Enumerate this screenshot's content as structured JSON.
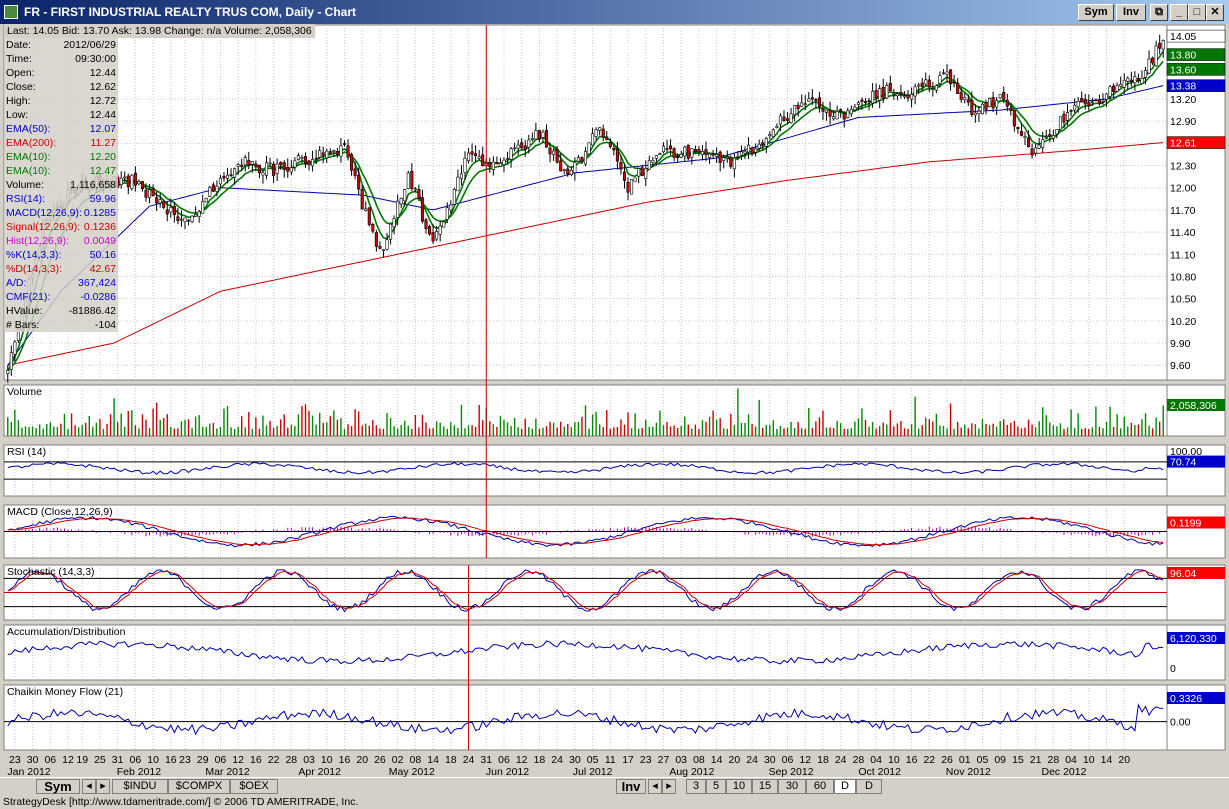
{
  "window": {
    "title": "FR - FIRST INDUSTRIAL REALTY TRUS COM, Daily - Chart",
    "sym_label": "Sym",
    "inv_label": "Inv"
  },
  "quote_line": "Last: 14.05  Bid: 13.70  Ask: 13.98  Change: n/a  Volume: 2,058,306",
  "data_panel": [
    {
      "label": "Date:",
      "value": "2012/06/29",
      "color": "#000000"
    },
    {
      "label": "Time:",
      "value": "09:30:00",
      "color": "#000000"
    },
    {
      "label": "Open:",
      "value": "12.44",
      "color": "#000000"
    },
    {
      "label": "Close:",
      "value": "12.62",
      "color": "#000000"
    },
    {
      "label": "High:",
      "value": "12.72",
      "color": "#000000"
    },
    {
      "label": "Low:",
      "value": "12.44",
      "color": "#000000"
    },
    {
      "label": "EMA(50):",
      "value": "12.07",
      "color": "#0000cc"
    },
    {
      "label": "EMA(200):",
      "value": "11.27",
      "color": "#cc0000"
    },
    {
      "label": "EMA(10):",
      "value": "12.20",
      "color": "#007700"
    },
    {
      "label": "EMA(10):",
      "value": "12.47",
      "color": "#007700"
    },
    {
      "label": "Volume:",
      "value": "1,116,658",
      "color": "#000000"
    },
    {
      "label": "RSI(14):",
      "value": "59.96",
      "color": "#0000cc"
    },
    {
      "label": "MACD(12,26,9):",
      "value": "0.1285",
      "color": "#0000cc"
    },
    {
      "label": "Signal(12,26,9):",
      "value": "0.1236",
      "color": "#cc0000"
    },
    {
      "label": "Hist(12,26,9):",
      "value": "0.0049",
      "color": "#cc00cc"
    },
    {
      "label": "%K(14,3,3):",
      "value": "50.16",
      "color": "#0000cc"
    },
    {
      "label": "%D(14,3,3):",
      "value": "42.67",
      "color": "#cc0000"
    },
    {
      "label": "A/D:",
      "value": "367,424",
      "color": "#0000cc"
    },
    {
      "label": "CMF(21):",
      "value": "-0.0286",
      "color": "#0000cc"
    },
    {
      "label": "HValue:",
      "value": "-81886.42",
      "color": "#000000"
    },
    {
      "label": "# Bars:",
      "value": "-104",
      "color": "#000000"
    }
  ],
  "chart_data": {
    "type": "candlestick",
    "symbol": "FR",
    "price_axis": {
      "ylim": [
        9.4,
        14.2
      ],
      "ticks": [
        "13.20",
        "12.90",
        "12.60",
        "12.30",
        "12.00",
        "11.70",
        "11.40",
        "11.10",
        "10.80",
        "10.50",
        "10.20",
        "9.90",
        "9.60"
      ]
    },
    "price_tags": [
      {
        "value": "14.05",
        "color": "#ffffff",
        "text_color": "#000000"
      },
      {
        "value": "13.80",
        "color": "#007700",
        "text_color": "#ffffff"
      },
      {
        "value": "13.60",
        "color": "#007700",
        "text_color": "#ffffff"
      },
      {
        "value": "13.38",
        "color": "#0000cc",
        "text_color": "#ffffff"
      },
      {
        "value": "12.61",
        "color": "#ff0000",
        "text_color": "#ffffff"
      }
    ],
    "price_keypoints": [
      [
        0,
        9.5
      ],
      [
        10,
        11.5
      ],
      [
        20,
        12.05
      ],
      [
        35,
        12.1
      ],
      [
        50,
        11.55
      ],
      [
        65,
        12.35
      ],
      [
        75,
        12.25
      ],
      [
        85,
        12.4
      ],
      [
        95,
        12.5
      ],
      [
        105,
        11.1
      ],
      [
        113,
        12.2
      ],
      [
        120,
        11.2
      ],
      [
        130,
        12.45
      ],
      [
        138,
        12.3
      ],
      [
        150,
        12.75
      ],
      [
        158,
        12.1
      ],
      [
        167,
        12.85
      ],
      [
        175,
        12.0
      ],
      [
        183,
        12.5
      ],
      [
        195,
        12.45
      ],
      [
        205,
        12.35
      ],
      [
        215,
        12.75
      ],
      [
        225,
        13.2
      ],
      [
        235,
        12.95
      ],
      [
        245,
        13.3
      ],
      [
        255,
        13.3
      ],
      [
        265,
        13.5
      ],
      [
        272,
        13.05
      ],
      [
        280,
        13.2
      ],
      [
        290,
        12.45
      ],
      [
        300,
        13.05
      ],
      [
        310,
        13.25
      ],
      [
        320,
        13.5
      ],
      [
        326,
        14.05
      ]
    ],
    "ema50_keypoints": [
      [
        0,
        9.6
      ],
      [
        15,
        10.6
      ],
      [
        40,
        11.75
      ],
      [
        60,
        12.0
      ],
      [
        100,
        11.9
      ],
      [
        120,
        11.7
      ],
      [
        160,
        12.2
      ],
      [
        200,
        12.4
      ],
      [
        240,
        12.95
      ],
      [
        280,
        13.05
      ],
      [
        310,
        13.2
      ],
      [
        326,
        13.38
      ]
    ],
    "ema200_keypoints": [
      [
        0,
        9.6
      ],
      [
        30,
        9.9
      ],
      [
        60,
        10.6
      ],
      [
        100,
        11.0
      ],
      [
        140,
        11.4
      ],
      [
        180,
        11.8
      ],
      [
        220,
        12.1
      ],
      [
        260,
        12.35
      ],
      [
        300,
        12.5
      ],
      [
        326,
        12.61
      ]
    ],
    "volume": {
      "last_label": "2,058,306"
    },
    "rsi": {
      "label": "RSI (14)",
      "scale_top": "100.00",
      "last_label": "70.74"
    },
    "macd": {
      "label": "MACD (Close,12,26,9)",
      "last_label": "0.1199"
    },
    "stochastic": {
      "label": "Stochastic (14,3,3)",
      "last_label": "96.04"
    },
    "ad": {
      "label": "Accumulation/Distribution",
      "last_label": "6,120,330",
      "zero_label": "0"
    },
    "cmf": {
      "label": "Chaikin Money Flow (21)",
      "last_label": "0.3326",
      "zero_label": "0.00"
    },
    "x_ticks": [
      {
        "bar": 2,
        "label": "23"
      },
      {
        "bar": 7,
        "label": "30"
      },
      {
        "bar": 12,
        "label": "06"
      },
      {
        "bar": 17,
        "label": "12"
      },
      {
        "bar": 21,
        "label": "19"
      },
      {
        "bar": 26,
        "label": "25"
      },
      {
        "bar": 31,
        "label": "31"
      },
      {
        "bar": 36,
        "label": "06"
      },
      {
        "bar": 41,
        "label": "10"
      },
      {
        "bar": 46,
        "label": "16"
      },
      {
        "bar": 50,
        "label": "23"
      },
      {
        "bar": 55,
        "label": "29"
      },
      {
        "bar": 60,
        "label": "06"
      },
      {
        "bar": 65,
        "label": "12"
      },
      {
        "bar": 70,
        "label": "16"
      },
      {
        "bar": 75,
        "label": "22"
      },
      {
        "bar": 80,
        "label": "28"
      },
      {
        "bar": 85,
        "label": "03"
      },
      {
        "bar": 90,
        "label": "10"
      },
      {
        "bar": 95,
        "label": "16"
      },
      {
        "bar": 100,
        "label": "20"
      },
      {
        "bar": 105,
        "label": "26"
      },
      {
        "bar": 110,
        "label": "02"
      },
      {
        "bar": 115,
        "label": "08"
      },
      {
        "bar": 120,
        "label": "14"
      },
      {
        "bar": 125,
        "label": "18"
      },
      {
        "bar": 130,
        "label": "24"
      },
      {
        "bar": 135,
        "label": "31"
      },
      {
        "bar": 140,
        "label": "06"
      },
      {
        "bar": 145,
        "label": "12"
      },
      {
        "bar": 150,
        "label": "18"
      },
      {
        "bar": 155,
        "label": "24"
      },
      {
        "bar": 160,
        "label": "30"
      },
      {
        "bar": 165,
        "label": "05"
      },
      {
        "bar": 170,
        "label": "11"
      },
      {
        "bar": 175,
        "label": "17"
      },
      {
        "bar": 180,
        "label": "23"
      },
      {
        "bar": 185,
        "label": "27"
      },
      {
        "bar": 190,
        "label": "03"
      },
      {
        "bar": 195,
        "label": "08"
      },
      {
        "bar": 200,
        "label": "14"
      },
      {
        "bar": 205,
        "label": "20"
      },
      {
        "bar": 210,
        "label": "24"
      },
      {
        "bar": 215,
        "label": "30"
      },
      {
        "bar": 220,
        "label": "06"
      },
      {
        "bar": 225,
        "label": "12"
      },
      {
        "bar": 230,
        "label": "18"
      },
      {
        "bar": 235,
        "label": "24"
      },
      {
        "bar": 240,
        "label": "28"
      },
      {
        "bar": 245,
        "label": "04"
      },
      {
        "bar": 250,
        "label": "10"
      },
      {
        "bar": 255,
        "label": "16"
      },
      {
        "bar": 260,
        "label": "22"
      },
      {
        "bar": 265,
        "label": "26"
      },
      {
        "bar": 270,
        "label": "01"
      },
      {
        "bar": 275,
        "label": "05"
      },
      {
        "bar": 280,
        "label": "09"
      },
      {
        "bar": 285,
        "label": "15"
      },
      {
        "bar": 290,
        "label": "21"
      },
      {
        "bar": 295,
        "label": "28"
      },
      {
        "bar": 300,
        "label": "04"
      },
      {
        "bar": 305,
        "label": "10"
      },
      {
        "bar": 310,
        "label": "14"
      },
      {
        "bar": 315,
        "label": "20"
      }
    ],
    "month_labels": [
      {
        "bar": 6,
        "label": "Jan 2012"
      },
      {
        "bar": 37,
        "label": "Feb 2012"
      },
      {
        "bar": 62,
        "label": "Mar 2012"
      },
      {
        "bar": 88,
        "label": "Apr 2012"
      },
      {
        "bar": 114,
        "label": "May 2012"
      },
      {
        "bar": 141,
        "label": "Jun 2012"
      },
      {
        "bar": 165,
        "label": "Jul 2012"
      },
      {
        "bar": 193,
        "label": "Aug 2012"
      },
      {
        "bar": 221,
        "label": "Sep 2012"
      },
      {
        "bar": 246,
        "label": "Oct 2012"
      },
      {
        "bar": 271,
        "label": "Nov 2012"
      },
      {
        "bar": 298,
        "label": "Dec 2012"
      }
    ],
    "cursor_bars": {
      "upper": 135,
      "lower": 130
    }
  },
  "bottom_bar": {
    "sym": "Sym",
    "symbols": [
      "$INDU",
      "$COMPX",
      "$OEX"
    ],
    "inv": "Inv",
    "periods": [
      "3",
      "5",
      "10",
      "15",
      "30",
      "60",
      "D",
      "D"
    ]
  },
  "status": "StrategyDesk [http://www.tdameritrade.com/] © 2006 TD AMERITRADE, Inc."
}
